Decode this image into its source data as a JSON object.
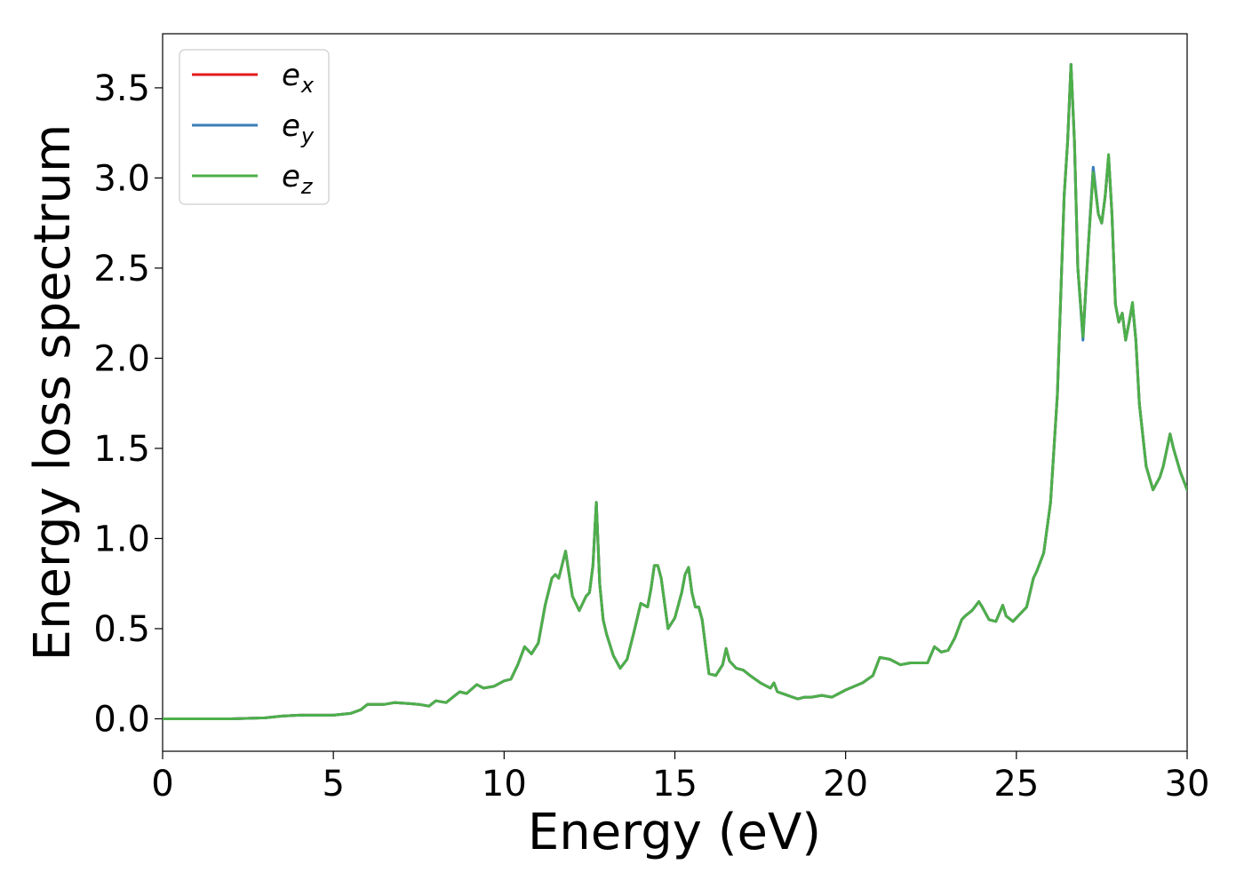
{
  "chart_data": {
    "type": "line",
    "title": "",
    "xlabel": "Energy (eV)",
    "ylabel": "Energy loss spectrum",
    "xlim": [
      0,
      30
    ],
    "ylim": [
      -0.18,
      3.8
    ],
    "xticks": [
      0,
      5,
      10,
      15,
      20,
      25,
      30
    ],
    "xtick_labels": [
      "0",
      "5",
      "10",
      "15",
      "20",
      "25",
      "30"
    ],
    "yticks": [
      0.0,
      0.5,
      1.0,
      1.5,
      2.0,
      2.5,
      3.0,
      3.5
    ],
    "ytick_labels": [
      "0.0",
      "0.5",
      "1.0",
      "1.5",
      "2.0",
      "2.5",
      "3.0",
      "3.5"
    ],
    "grid": false,
    "legend": {
      "position": "top-left"
    },
    "series": [
      {
        "name": "e_x",
        "label_base": "e",
        "label_sub": "x",
        "color": "#e41a1c",
        "x": [
          0,
          1,
          2,
          3,
          3.5,
          4,
          4.5,
          5,
          5.5,
          5.8,
          6,
          6.5,
          6.8,
          7.2,
          7.5,
          7.8,
          8,
          8.3,
          8.7,
          8.9,
          9.2,
          9.4,
          9.7,
          10,
          10.2,
          10.4,
          10.6,
          10.8,
          11,
          11.2,
          11.4,
          11.5,
          11.6,
          11.8,
          12,
          12.2,
          12.4,
          12.5,
          12.6,
          12.7,
          12.8,
          12.9,
          13,
          13.2,
          13.4,
          13.6,
          13.8,
          14,
          14.2,
          14.3,
          14.4,
          14.5,
          14.6,
          14.8,
          15,
          15.2,
          15.3,
          15.4,
          15.5,
          15.6,
          15.7,
          15.8,
          16,
          16.2,
          16.4,
          16.5,
          16.6,
          16.8,
          17,
          17.2,
          17.5,
          17.8,
          17.9,
          18,
          18.3,
          18.6,
          18.8,
          19,
          19.3,
          19.6,
          20,
          20.5,
          20.8,
          21,
          21.3,
          21.6,
          21.9,
          22.2,
          22.4,
          22.6,
          22.8,
          23,
          23.2,
          23.4,
          23.5,
          23.7,
          23.9,
          24,
          24.2,
          24.4,
          24.6,
          24.7,
          24.9,
          25.1,
          25.3,
          25.5,
          25.6,
          25.8,
          26,
          26.2,
          26.4,
          26.5,
          26.6,
          26.7,
          26.8,
          26.95,
          27.1,
          27.25,
          27.4,
          27.5,
          27.6,
          27.7,
          27.8,
          27.9,
          28,
          28.1,
          28.2,
          28.3,
          28.4,
          28.5,
          28.6,
          28.8,
          29,
          29.2,
          29.3,
          29.5,
          29.6,
          29.8,
          30
        ],
        "y": [
          0.0,
          0.0,
          0.0,
          0.005,
          0.015,
          0.02,
          0.02,
          0.02,
          0.03,
          0.05,
          0.08,
          0.08,
          0.09,
          0.085,
          0.08,
          0.07,
          0.1,
          0.09,
          0.15,
          0.14,
          0.19,
          0.17,
          0.18,
          0.21,
          0.22,
          0.3,
          0.4,
          0.36,
          0.42,
          0.63,
          0.78,
          0.8,
          0.78,
          0.93,
          0.68,
          0.6,
          0.68,
          0.7,
          0.85,
          1.2,
          0.75,
          0.55,
          0.47,
          0.35,
          0.28,
          0.33,
          0.48,
          0.64,
          0.62,
          0.72,
          0.85,
          0.85,
          0.78,
          0.5,
          0.56,
          0.7,
          0.8,
          0.84,
          0.7,
          0.62,
          0.62,
          0.55,
          0.25,
          0.24,
          0.3,
          0.39,
          0.32,
          0.28,
          0.27,
          0.24,
          0.2,
          0.17,
          0.2,
          0.15,
          0.13,
          0.11,
          0.12,
          0.12,
          0.13,
          0.12,
          0.16,
          0.2,
          0.24,
          0.34,
          0.33,
          0.3,
          0.31,
          0.31,
          0.31,
          0.4,
          0.37,
          0.38,
          0.45,
          0.55,
          0.57,
          0.6,
          0.65,
          0.62,
          0.55,
          0.54,
          0.63,
          0.57,
          0.54,
          0.58,
          0.62,
          0.78,
          0.82,
          0.92,
          1.2,
          1.8,
          2.9,
          3.2,
          3.63,
          3.2,
          2.5,
          2.12,
          2.6,
          3.05,
          2.8,
          2.75,
          2.9,
          3.12,
          2.8,
          2.3,
          2.2,
          2.25,
          2.1,
          2.2,
          2.3,
          2.1,
          1.75,
          1.4,
          1.27,
          1.34,
          1.4,
          1.58,
          1.5,
          1.37,
          1.27
        ]
      },
      {
        "name": "e_y",
        "label_base": "e",
        "label_sub": "y",
        "color": "#377eb8",
        "x": [
          0,
          1,
          2,
          3,
          3.5,
          4,
          4.5,
          5,
          5.5,
          5.8,
          6,
          6.5,
          6.8,
          7.2,
          7.5,
          7.8,
          8,
          8.3,
          8.7,
          8.9,
          9.2,
          9.4,
          9.7,
          10,
          10.2,
          10.4,
          10.6,
          10.8,
          11,
          11.2,
          11.4,
          11.5,
          11.6,
          11.8,
          12,
          12.2,
          12.4,
          12.5,
          12.6,
          12.7,
          12.8,
          12.9,
          13,
          13.2,
          13.4,
          13.6,
          13.8,
          14,
          14.2,
          14.3,
          14.4,
          14.5,
          14.6,
          14.8,
          15,
          15.2,
          15.3,
          15.4,
          15.5,
          15.6,
          15.7,
          15.8,
          16,
          16.2,
          16.4,
          16.5,
          16.6,
          16.8,
          17,
          17.2,
          17.5,
          17.8,
          17.9,
          18,
          18.3,
          18.6,
          18.8,
          19,
          19.3,
          19.6,
          20,
          20.5,
          20.8,
          21,
          21.3,
          21.6,
          21.9,
          22.2,
          22.4,
          22.6,
          22.8,
          23,
          23.2,
          23.4,
          23.5,
          23.7,
          23.9,
          24,
          24.2,
          24.4,
          24.6,
          24.7,
          24.9,
          25.1,
          25.3,
          25.5,
          25.6,
          25.8,
          26,
          26.2,
          26.4,
          26.5,
          26.6,
          26.7,
          26.8,
          26.95,
          27.1,
          27.25,
          27.4,
          27.5,
          27.6,
          27.7,
          27.8,
          27.9,
          28,
          28.1,
          28.2,
          28.3,
          28.4,
          28.5,
          28.6,
          28.8,
          29,
          29.2,
          29.3,
          29.5,
          29.6,
          29.8,
          30
        ],
        "y": [
          0.0,
          0.0,
          0.0,
          0.005,
          0.015,
          0.02,
          0.02,
          0.02,
          0.03,
          0.05,
          0.08,
          0.08,
          0.09,
          0.085,
          0.08,
          0.07,
          0.1,
          0.09,
          0.15,
          0.14,
          0.19,
          0.17,
          0.18,
          0.21,
          0.22,
          0.3,
          0.4,
          0.36,
          0.42,
          0.63,
          0.78,
          0.8,
          0.78,
          0.93,
          0.68,
          0.6,
          0.68,
          0.7,
          0.85,
          1.2,
          0.75,
          0.55,
          0.47,
          0.35,
          0.28,
          0.33,
          0.48,
          0.64,
          0.62,
          0.72,
          0.85,
          0.85,
          0.78,
          0.5,
          0.56,
          0.7,
          0.8,
          0.84,
          0.7,
          0.62,
          0.62,
          0.55,
          0.25,
          0.24,
          0.3,
          0.39,
          0.32,
          0.28,
          0.27,
          0.24,
          0.2,
          0.17,
          0.2,
          0.15,
          0.13,
          0.11,
          0.12,
          0.12,
          0.13,
          0.12,
          0.16,
          0.2,
          0.24,
          0.34,
          0.33,
          0.3,
          0.31,
          0.31,
          0.31,
          0.4,
          0.37,
          0.38,
          0.45,
          0.55,
          0.57,
          0.6,
          0.65,
          0.62,
          0.55,
          0.54,
          0.63,
          0.57,
          0.54,
          0.58,
          0.62,
          0.78,
          0.82,
          0.92,
          1.2,
          1.8,
          2.9,
          3.2,
          3.63,
          3.2,
          2.5,
          2.1,
          2.6,
          3.06,
          2.8,
          2.75,
          2.9,
          3.12,
          2.8,
          2.3,
          2.2,
          2.25,
          2.1,
          2.2,
          2.3,
          2.1,
          1.75,
          1.4,
          1.27,
          1.34,
          1.4,
          1.58,
          1.5,
          1.37,
          1.27
        ]
      },
      {
        "name": "e_z",
        "label_base": "e",
        "label_sub": "z",
        "color": "#4daf4a",
        "x": [
          0,
          1,
          2,
          3,
          3.5,
          4,
          4.5,
          5,
          5.5,
          5.8,
          6,
          6.5,
          6.8,
          7.2,
          7.5,
          7.8,
          8,
          8.3,
          8.7,
          8.9,
          9.2,
          9.4,
          9.7,
          10,
          10.2,
          10.4,
          10.6,
          10.8,
          11,
          11.2,
          11.4,
          11.5,
          11.6,
          11.8,
          12,
          12.2,
          12.4,
          12.5,
          12.6,
          12.7,
          12.8,
          12.9,
          13,
          13.2,
          13.4,
          13.6,
          13.8,
          14,
          14.2,
          14.3,
          14.4,
          14.5,
          14.6,
          14.8,
          15,
          15.2,
          15.3,
          15.4,
          15.5,
          15.6,
          15.7,
          15.8,
          16,
          16.2,
          16.4,
          16.5,
          16.6,
          16.8,
          17,
          17.2,
          17.5,
          17.8,
          17.9,
          18,
          18.3,
          18.6,
          18.8,
          19,
          19.3,
          19.6,
          20,
          20.5,
          20.8,
          21,
          21.3,
          21.6,
          21.9,
          22.2,
          22.4,
          22.6,
          22.8,
          23,
          23.2,
          23.4,
          23.5,
          23.7,
          23.9,
          24,
          24.2,
          24.4,
          24.6,
          24.7,
          24.9,
          25.1,
          25.3,
          25.5,
          25.6,
          25.8,
          26,
          26.2,
          26.4,
          26.5,
          26.6,
          26.7,
          26.8,
          26.95,
          27.1,
          27.25,
          27.4,
          27.5,
          27.6,
          27.7,
          27.8,
          27.9,
          28,
          28.1,
          28.2,
          28.3,
          28.4,
          28.5,
          28.6,
          28.8,
          29,
          29.2,
          29.3,
          29.5,
          29.6,
          29.8,
          30
        ],
        "y": [
          0.0,
          0.0,
          0.0,
          0.005,
          0.015,
          0.02,
          0.02,
          0.02,
          0.03,
          0.05,
          0.08,
          0.08,
          0.09,
          0.085,
          0.08,
          0.07,
          0.1,
          0.09,
          0.15,
          0.14,
          0.19,
          0.17,
          0.18,
          0.21,
          0.22,
          0.3,
          0.4,
          0.36,
          0.42,
          0.63,
          0.78,
          0.8,
          0.78,
          0.93,
          0.68,
          0.6,
          0.68,
          0.7,
          0.85,
          1.2,
          0.75,
          0.55,
          0.47,
          0.35,
          0.28,
          0.33,
          0.48,
          0.64,
          0.62,
          0.72,
          0.85,
          0.85,
          0.78,
          0.5,
          0.56,
          0.7,
          0.8,
          0.84,
          0.7,
          0.62,
          0.62,
          0.55,
          0.25,
          0.24,
          0.3,
          0.39,
          0.32,
          0.28,
          0.27,
          0.24,
          0.2,
          0.17,
          0.2,
          0.15,
          0.13,
          0.11,
          0.12,
          0.12,
          0.13,
          0.12,
          0.16,
          0.2,
          0.24,
          0.34,
          0.33,
          0.3,
          0.31,
          0.31,
          0.31,
          0.4,
          0.37,
          0.38,
          0.45,
          0.55,
          0.57,
          0.6,
          0.65,
          0.62,
          0.55,
          0.54,
          0.63,
          0.57,
          0.54,
          0.58,
          0.62,
          0.78,
          0.82,
          0.92,
          1.2,
          1.8,
          2.9,
          3.2,
          3.63,
          3.2,
          2.5,
          2.12,
          2.6,
          3.03,
          2.8,
          2.75,
          2.9,
          3.13,
          2.8,
          2.3,
          2.2,
          2.25,
          2.1,
          2.2,
          2.31,
          2.1,
          1.75,
          1.4,
          1.27,
          1.34,
          1.4,
          1.58,
          1.5,
          1.37,
          1.27
        ]
      }
    ]
  }
}
